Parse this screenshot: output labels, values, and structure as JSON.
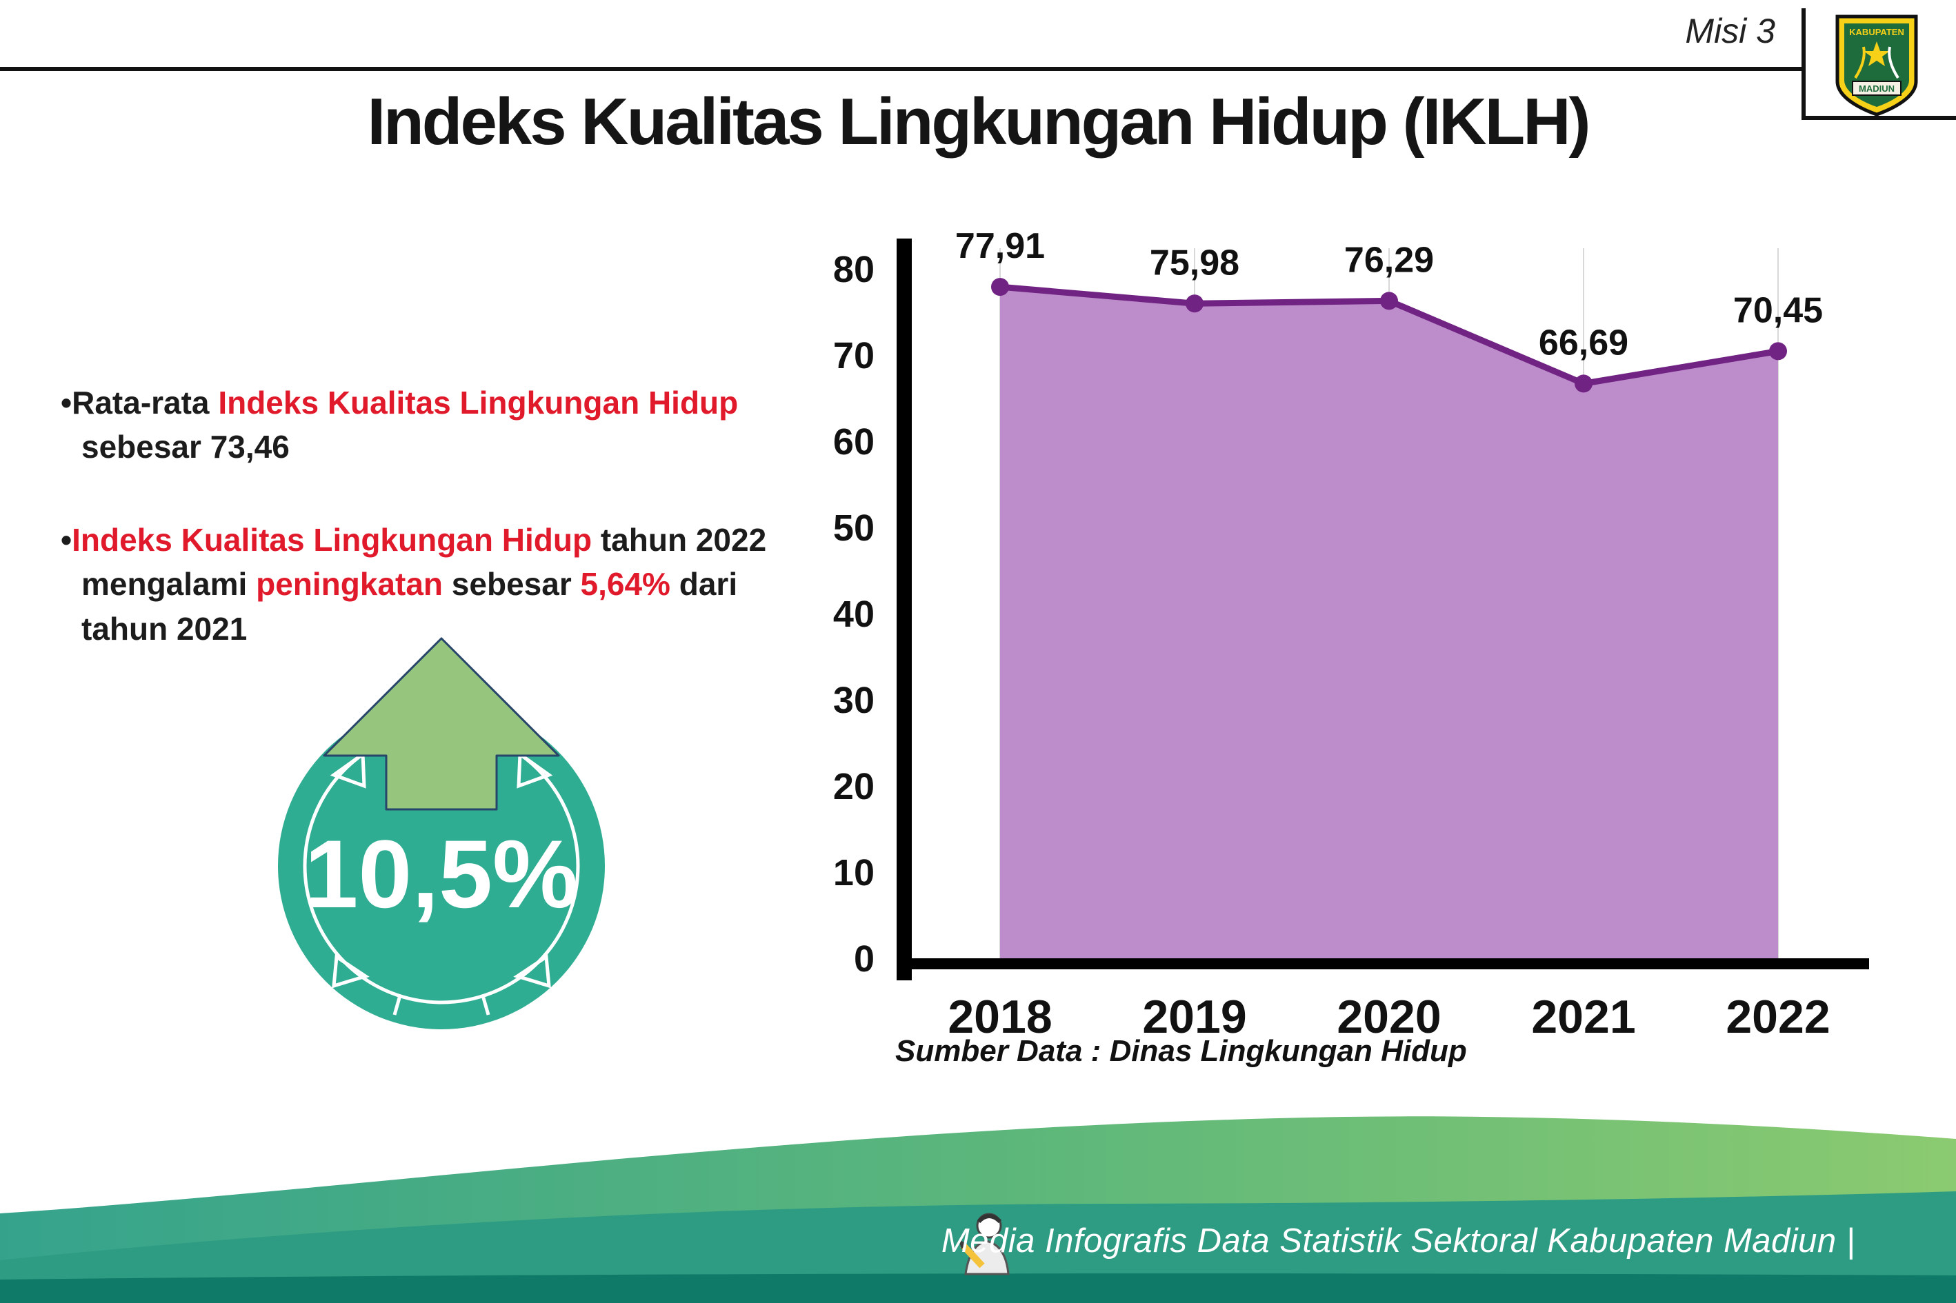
{
  "header": {
    "misi": "Misi 3",
    "title": "Indeks Kualitas Lingkungan Hidup (IKLH)"
  },
  "logo": {
    "line1": "KABUPATEN",
    "line2": "MADIUN"
  },
  "bullets": {
    "b1": {
      "p1": "Rata-rata ",
      "p2": "Indeks Kualitas Lingkungan Hidup",
      "p3": " sebesar 73,46"
    },
    "b2": {
      "p1": "Indeks Kualitas Lingkungan Hidup",
      "p2": " tahun 2022 mengalami ",
      "p3": "peningkatan",
      "p4": " sebesar ",
      "p5": "5,64%",
      "p6": " dari tahun 2021"
    }
  },
  "badge": {
    "value": "10,5%"
  },
  "chart_data": {
    "type": "area",
    "title": "Indeks Kualitas Lingkungan Hidup (IKLH)",
    "categories": [
      "2018",
      "2019",
      "2020",
      "2021",
      "2022"
    ],
    "values": [
      77.91,
      75.98,
      76.29,
      66.69,
      70.45
    ],
    "point_labels": [
      "77,91",
      "75,98",
      "76,29",
      "66,69",
      "70,45"
    ],
    "ylim": [
      0,
      80
    ],
    "yticks": [
      0,
      10,
      20,
      30,
      40,
      50,
      60,
      70,
      80
    ],
    "grid": "vertical-light",
    "legend": "none",
    "area_color": "#BD8CCB",
    "line_color": "#702382",
    "source": "Sumber Data : Dinas Lingkungan Hidup"
  },
  "theme": {
    "accent_red": "#E0192B",
    "badge_teal": "#2FAD92",
    "arrow_green": "#96C67E",
    "footer_dark": "#0F7A67"
  },
  "footer": {
    "credit": "Media Infografis Data Statistik Sektoral Kabupaten Madiun |"
  }
}
